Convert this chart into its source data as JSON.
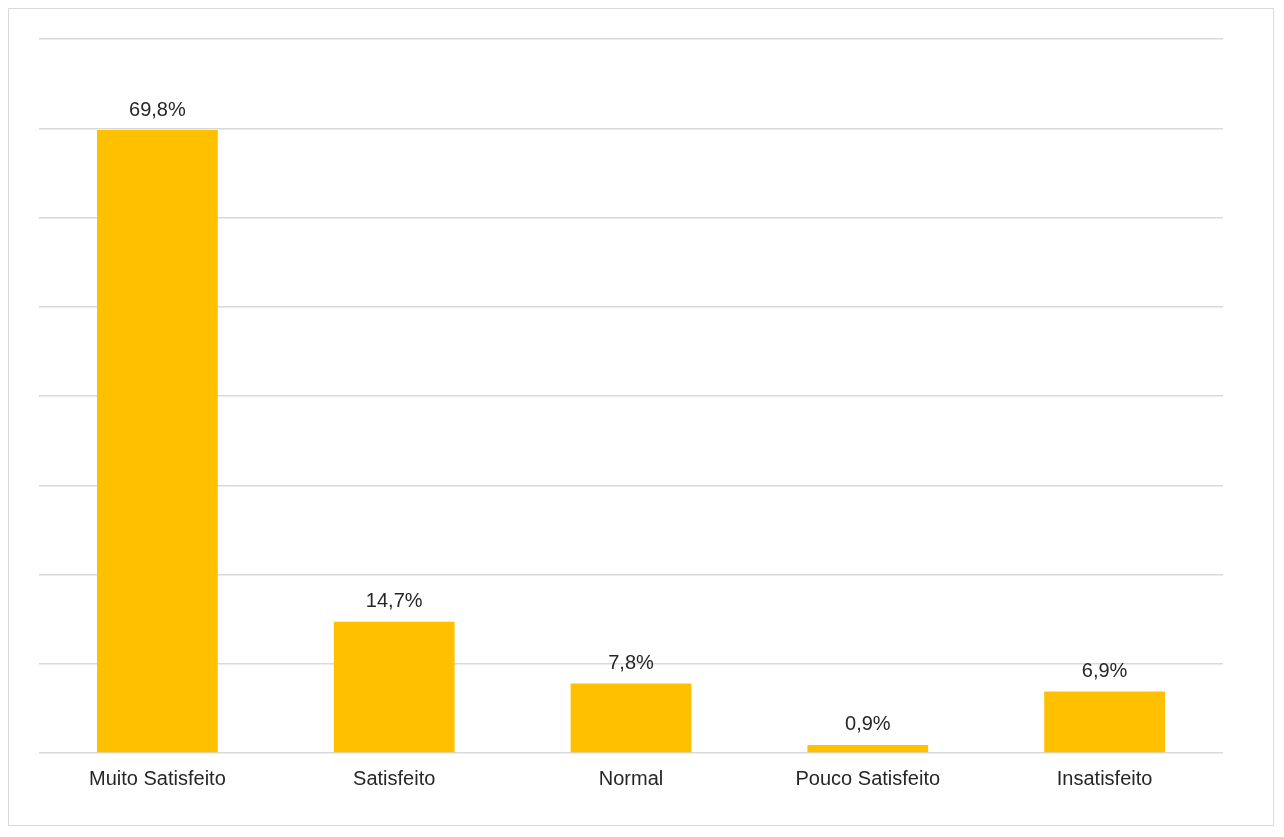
{
  "chart_data": {
    "type": "bar",
    "categories": [
      "Muito Satisfeito",
      "Satisfeito",
      "Normal",
      "Pouco Satisfeito",
      "Insatisfeito"
    ],
    "values": [
      69.8,
      14.7,
      7.8,
      0.9,
      6.9
    ],
    "value_labels": [
      "69,8%",
      "14,7%",
      "7,8%",
      "0,9%",
      "6,9%"
    ],
    "color": "#ffc000",
    "ylim": [
      0,
      80
    ],
    "yticks": [
      {
        "value": 0,
        "label": null
      },
      {
        "value": 10,
        "label": null
      },
      {
        "value": 20,
        "label": null
      },
      {
        "value": 30,
        "label": null
      },
      {
        "value": 40,
        "label": null
      },
      {
        "value": 50,
        "label": null
      },
      {
        "value": 60,
        "label": null
      },
      {
        "value": 70,
        "label": null
      },
      {
        "value": 80,
        "label": null
      }
    ],
    "grid": "y",
    "legend": false,
    "tick_labels": "x"
  }
}
